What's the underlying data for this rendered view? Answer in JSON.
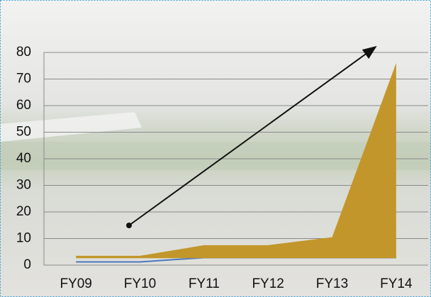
{
  "chart_data": {
    "type": "area",
    "categories": [
      "FY09",
      "FY10",
      "FY11",
      "FY12",
      "FY13",
      "FY14"
    ],
    "series": [
      {
        "type": "line",
        "color": "#4a78c2",
        "values": [
          1.2,
          1.2,
          2.8,
          2.8,
          2.8,
          2.8
        ]
      },
      {
        "type": "area",
        "color": "#c2962a",
        "values": [
          3.5,
          3.5,
          7.5,
          7.5,
          10.5,
          76
        ],
        "baseline": [
          2.6,
          2.6,
          2.6,
          2.6,
          2.6,
          2.6
        ]
      }
    ],
    "ylim": [
      0,
      80
    ],
    "yticks": [
      0,
      10,
      20,
      30,
      40,
      50,
      60,
      70,
      80
    ],
    "grid": true
  }
}
